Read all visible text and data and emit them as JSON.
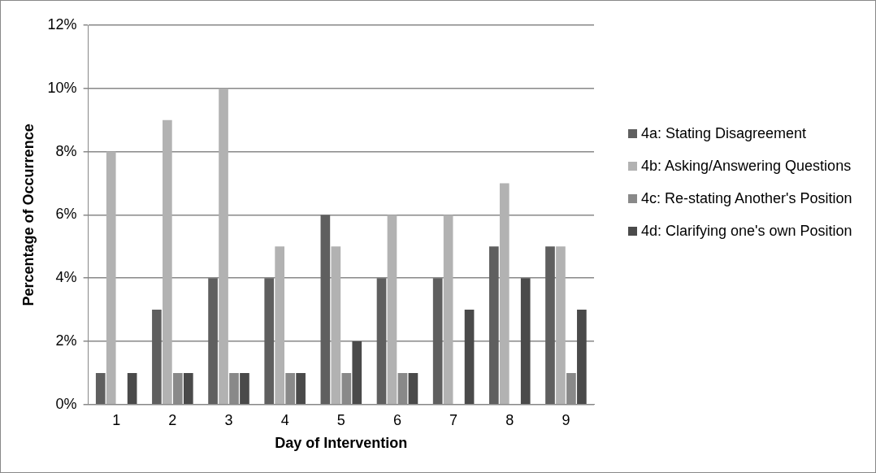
{
  "chart_data": {
    "type": "bar",
    "xlabel": "Day of Intervention",
    "ylabel": "Percentage of Occurrence",
    "categories": [
      "1",
      "2",
      "3",
      "4",
      "5",
      "6",
      "7",
      "8",
      "9"
    ],
    "series": [
      {
        "name": "4a: Stating Disagreement",
        "color": "#5f5f5f",
        "values": [
          1,
          3,
          4,
          4,
          6,
          4,
          4,
          5,
          5
        ]
      },
      {
        "name": "4b: Asking/Answering Questions",
        "color": "#b2b2b2",
        "values": [
          8,
          9,
          10,
          5,
          5,
          6,
          6,
          7,
          5
        ]
      },
      {
        "name": "4c: Re-stating Another's Position",
        "color": "#898989",
        "values": [
          0,
          1,
          1,
          1,
          1,
          1,
          0,
          0,
          1
        ]
      },
      {
        "name": "4d: Clarifying one's own Position",
        "color": "#4a4a4a",
        "values": [
          1,
          1,
          1,
          1,
          2,
          1,
          3,
          4,
          3
        ]
      }
    ],
    "ylim": [
      0,
      12
    ],
    "yticks": [
      {
        "value": 0,
        "label": "0%"
      },
      {
        "value": 2,
        "label": "2%"
      },
      {
        "value": 4,
        "label": "4%"
      },
      {
        "value": 6,
        "label": "6%"
      },
      {
        "value": 8,
        "label": "8%"
      },
      {
        "value": 10,
        "label": "10%"
      },
      {
        "value": 12,
        "label": "12%"
      }
    ],
    "grid": "y",
    "legend": "right"
  }
}
